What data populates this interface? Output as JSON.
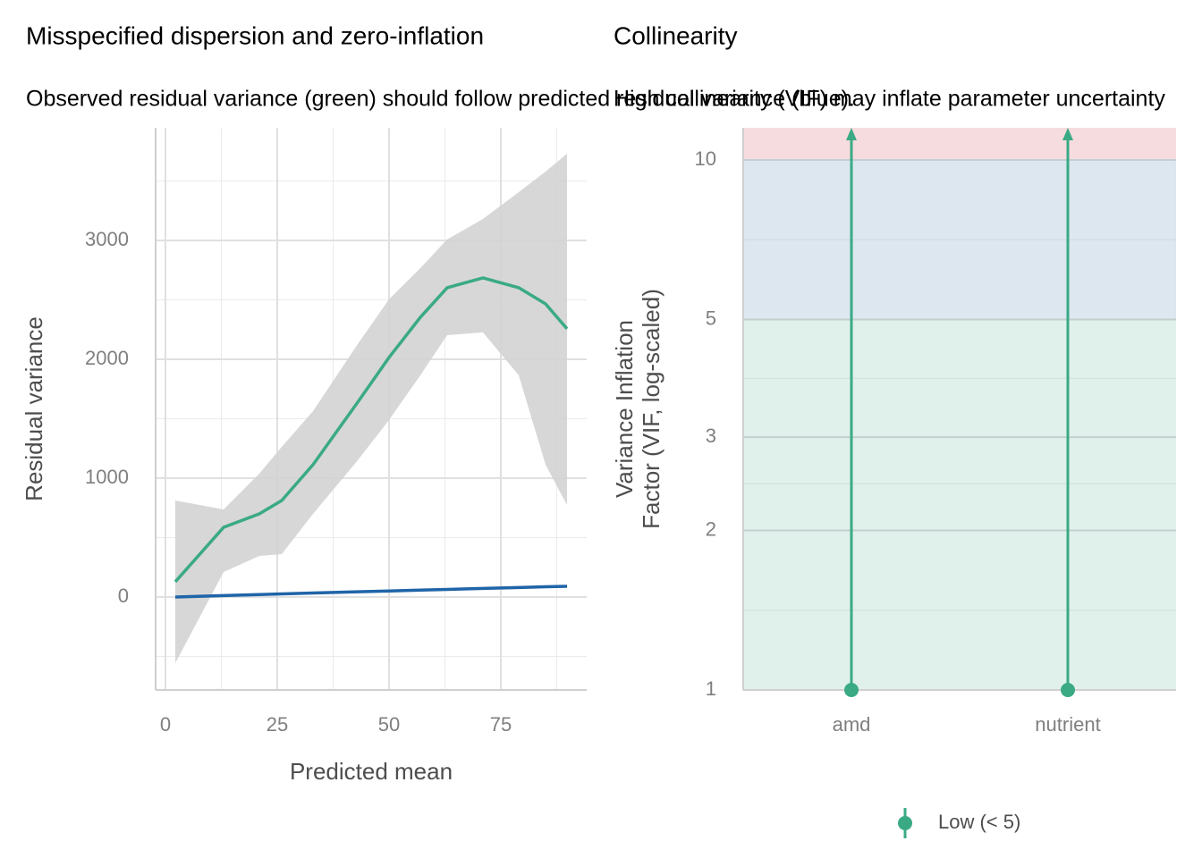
{
  "chart_data": [
    {
      "type": "line",
      "title": "Misspecified dispersion and zero-inflation",
      "subtitle": "Observed residual variance (green) should follow predicted residual variance (blue).",
      "xlabel": "Predicted mean",
      "ylabel": "Residual variance",
      "x": [
        2.2,
        13,
        21,
        26,
        33,
        43,
        50,
        57,
        63,
        71,
        79,
        85,
        89.8
      ],
      "series": [
        {
          "color": "#3aaa85",
          "values": [
            128,
            586,
            700,
            812,
            1113,
            1639,
            2015,
            2353,
            2602,
            2684,
            2602,
            2466,
            2256
          ],
          "band": {
            "color": "#d3d3d3",
            "upper": [
              812,
              737,
              1038,
              1263,
              1564,
              2128,
              2504,
              2767,
              3008,
              3180,
              3406,
              3579,
              3729
            ],
            "lower": [
              -556,
              210,
              346,
              361,
              699,
              1150,
              1489,
              1865,
              2203,
              2226,
              1865,
              1113,
              774
            ]
          }
        },
        {
          "color": "#1f64a8",
          "values": [
            0,
            12,
            21,
            26,
            34,
            44,
            51,
            58,
            64,
            72,
            80,
            86,
            90
          ]
        }
      ],
      "xlim": [
        -2.2,
        94.2
      ],
      "xticks": [
        0,
        25,
        50,
        75
      ],
      "ylim": [
        -782,
        3947
      ],
      "yticks": [
        0,
        1000,
        2000,
        3000
      ],
      "grid": true
    },
    {
      "type": "errorbar",
      "title": "Collinearity",
      "subtitle": "High collinearity (VIF) may inflate parameter uncertainty",
      "ylabel": [
        "Variance Inflation",
        "Factor (VIF, log-scaled)"
      ],
      "categories": [
        "amd",
        "nutrient"
      ],
      "series": [
        {
          "name": "Low (< 5)",
          "color": "#3aaa85",
          "values": [
            1,
            1
          ],
          "upper": [
            11.5,
            11.5
          ]
        }
      ],
      "zones": [
        {
          "from": 1,
          "to": 5,
          "color": "#e0f1eb"
        },
        {
          "from": 5,
          "to": 10,
          "color": "#dce7f0"
        },
        {
          "from": 10,
          "to": 11.5,
          "color": "#f7dcdf"
        }
      ],
      "log": true,
      "ylim": [
        1,
        11.5
      ],
      "yticks": [
        1,
        2,
        3,
        5,
        10
      ],
      "grid": true,
      "legend": "bottom"
    }
  ]
}
